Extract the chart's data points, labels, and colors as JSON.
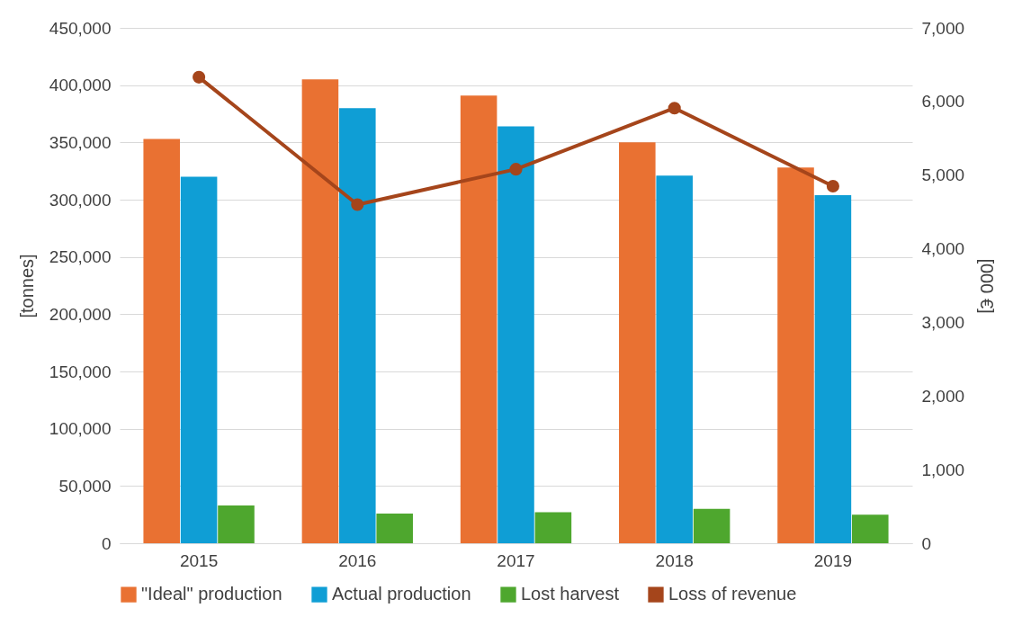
{
  "chart_data": {
    "type": "bar",
    "ylabel": "[tonnes]",
    "y2label": "[000 €]",
    "categories": [
      "2015",
      "2016",
      "2017",
      "2018",
      "2019"
    ],
    "series": [
      {
        "name": "\"Ideal\" production",
        "color": "#e97132",
        "values": [
          353000,
          405000,
          391000,
          350000,
          328000
        ]
      },
      {
        "name": "Actual production",
        "color": "#0f9ed5",
        "values": [
          320000,
          380000,
          364000,
          321000,
          304000
        ]
      },
      {
        "name": "Lost harvest",
        "color": "#4ea72e",
        "values": [
          33000,
          26000,
          27000,
          30000,
          25000
        ]
      },
      {
        "name": "Loss of revenue",
        "color": "#a5451b",
        "type": "line",
        "axis": "y2",
        "values": [
          6330,
          4600,
          5080,
          5910,
          4850
        ]
      }
    ],
    "ylim": [
      0,
      450000
    ],
    "yticks": [
      0,
      {
        "value": 50000,
        "label": "50,000"
      },
      {
        "value": 100000,
        "label": "100,000"
      },
      {
        "value": 150000,
        "label": "150,000"
      },
      {
        "value": 200000,
        "label": "200,000"
      },
      {
        "value": 250000,
        "label": "250,000"
      },
      {
        "value": 300000,
        "label": "300,000"
      },
      {
        "value": 350000,
        "label": "350,000"
      },
      {
        "value": 400000,
        "label": "400,000"
      },
      {
        "value": 450000,
        "label": "450,000"
      }
    ],
    "y2lim": [
      0,
      7000
    ],
    "y2ticks": [
      0,
      {
        "value": 1000,
        "label": "1,000"
      },
      {
        "value": 2000,
        "label": "2,000"
      },
      {
        "value": 3000,
        "label": "3,000"
      },
      {
        "value": 4000,
        "label": "4,000"
      },
      {
        "value": 5000,
        "label": "5,000"
      },
      {
        "value": 6000,
        "label": "6,000"
      },
      {
        "value": 7000,
        "label": "7,000"
      }
    ],
    "grid": "y",
    "legend": "bottom",
    "marker": "circle"
  }
}
